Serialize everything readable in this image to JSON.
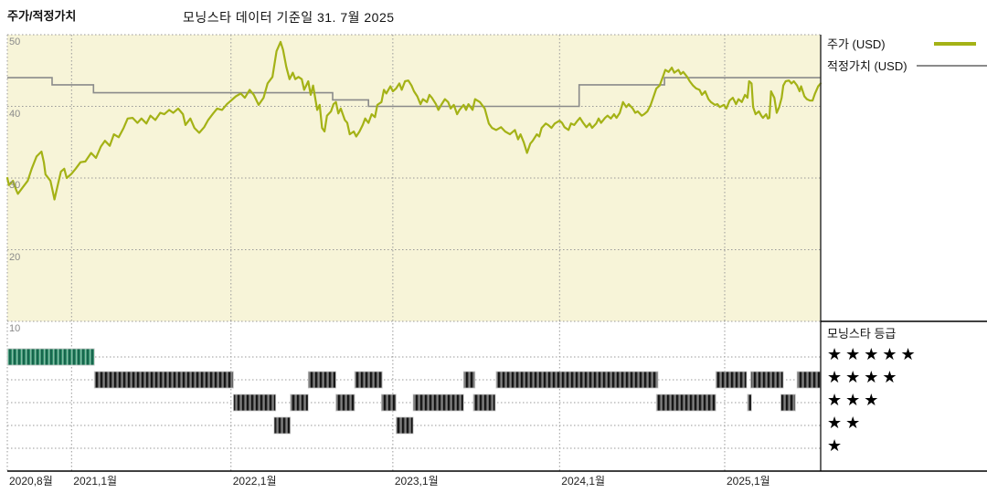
{
  "header": {
    "left_label": "주가/적정가치",
    "title": "모닝스타 데이터 기준일 31. 7월 2025"
  },
  "legend": {
    "price_label": "주가 (USD)",
    "fair_label": "적정가치 (USD)"
  },
  "rating_legend": {
    "title": "모닝스타 등급",
    "star_char": "★",
    "rows": [
      5,
      4,
      3,
      2,
      1
    ]
  },
  "colors": {
    "price_line": "#a4b216",
    "fair_line": "#8a8a8a",
    "plot_bg": "#f7f4d8",
    "grid": "#999999",
    "axis_line": "#000000",
    "tick_text": "#8a8a8a",
    "band_dark_base": "#585858",
    "band_dark_stripe": "#111111",
    "band_dark_light": "#9a9a9a",
    "band_teal_base": "#2f8e69",
    "band_teal_stripe": "#14624a",
    "band_teal_light": "#bcd9cd",
    "band_outline": "#c8c8c8"
  },
  "chart_data": {
    "type": "line",
    "title": "모닝스타 데이터 기준일 31. 7월 2025",
    "x_axis": {
      "ticks": [
        {
          "label": "2020,8월",
          "f": 0.0
        },
        {
          "label": "2021,1월",
          "f": 0.079
        },
        {
          "label": "2022,1월",
          "f": 0.275
        },
        {
          "label": "2023,1월",
          "f": 0.474
        },
        {
          "label": "2024,1월",
          "f": 0.679
        },
        {
          "label": "2025,1월",
          "f": 0.882
        }
      ]
    },
    "y_axis": {
      "ticks": [
        50,
        40,
        30,
        20,
        10
      ],
      "range": [
        10,
        50.5
      ],
      "unit": "USD"
    },
    "series": [
      {
        "name": "주가 (USD)",
        "type": "line",
        "points": [
          [
            0.0,
            30.0
          ],
          [
            0.002,
            29.0
          ],
          [
            0.007,
            29.6
          ],
          [
            0.011,
            28.3
          ],
          [
            0.013,
            27.8
          ],
          [
            0.019,
            28.7
          ],
          [
            0.025,
            29.6
          ],
          [
            0.03,
            31.3
          ],
          [
            0.036,
            33.0
          ],
          [
            0.042,
            33.7
          ],
          [
            0.045,
            32.2
          ],
          [
            0.047,
            30.5
          ],
          [
            0.053,
            29.6
          ],
          [
            0.056,
            28.1
          ],
          [
            0.058,
            27.0
          ],
          [
            0.062,
            29.0
          ],
          [
            0.066,
            30.9
          ],
          [
            0.07,
            31.3
          ],
          [
            0.073,
            30.0
          ],
          [
            0.079,
            30.6
          ],
          [
            0.084,
            31.3
          ],
          [
            0.09,
            32.2
          ],
          [
            0.096,
            32.3
          ],
          [
            0.103,
            33.5
          ],
          [
            0.109,
            32.8
          ],
          [
            0.115,
            34.4
          ],
          [
            0.12,
            35.2
          ],
          [
            0.126,
            34.5
          ],
          [
            0.131,
            36.1
          ],
          [
            0.137,
            35.7
          ],
          [
            0.143,
            37.0
          ],
          [
            0.148,
            38.3
          ],
          [
            0.154,
            38.4
          ],
          [
            0.16,
            37.7
          ],
          [
            0.165,
            38.3
          ],
          [
            0.171,
            37.6
          ],
          [
            0.176,
            38.7
          ],
          [
            0.182,
            38.1
          ],
          [
            0.188,
            39.1
          ],
          [
            0.193,
            38.9
          ],
          [
            0.199,
            39.5
          ],
          [
            0.204,
            39.1
          ],
          [
            0.21,
            39.7
          ],
          [
            0.216,
            38.9
          ],
          [
            0.219,
            37.4
          ],
          [
            0.225,
            38.3
          ],
          [
            0.23,
            37.0
          ],
          [
            0.236,
            36.3
          ],
          [
            0.242,
            37.1
          ],
          [
            0.247,
            38.1
          ],
          [
            0.253,
            39.0
          ],
          [
            0.258,
            39.7
          ],
          [
            0.264,
            39.5
          ],
          [
            0.27,
            40.3
          ],
          [
            0.275,
            40.8
          ],
          [
            0.281,
            41.4
          ],
          [
            0.287,
            41.8
          ],
          [
            0.292,
            41.2
          ],
          [
            0.298,
            42.3
          ],
          [
            0.303,
            41.6
          ],
          [
            0.309,
            40.2
          ],
          [
            0.315,
            41.2
          ],
          [
            0.32,
            43.2
          ],
          [
            0.326,
            44.1
          ],
          [
            0.331,
            47.7
          ],
          [
            0.336,
            49.0
          ],
          [
            0.339,
            47.9
          ],
          [
            0.343,
            45.5
          ],
          [
            0.347,
            43.8
          ],
          [
            0.351,
            44.7
          ],
          [
            0.354,
            43.8
          ],
          [
            0.358,
            44.1
          ],
          [
            0.362,
            43.8
          ],
          [
            0.365,
            42.3
          ],
          [
            0.37,
            43.5
          ],
          [
            0.373,
            41.6
          ],
          [
            0.376,
            42.9
          ],
          [
            0.381,
            39.5
          ],
          [
            0.384,
            40.2
          ],
          [
            0.387,
            37.0
          ],
          [
            0.39,
            36.5
          ],
          [
            0.393,
            38.7
          ],
          [
            0.398,
            39.3
          ],
          [
            0.401,
            40.3
          ],
          [
            0.404,
            40.6
          ],
          [
            0.407,
            39.0
          ],
          [
            0.41,
            39.7
          ],
          [
            0.415,
            38.1
          ],
          [
            0.418,
            37.7
          ],
          [
            0.421,
            36.1
          ],
          [
            0.426,
            36.5
          ],
          [
            0.429,
            35.8
          ],
          [
            0.433,
            36.5
          ],
          [
            0.437,
            37.4
          ],
          [
            0.44,
            38.3
          ],
          [
            0.444,
            37.7
          ],
          [
            0.448,
            38.9
          ],
          [
            0.452,
            38.5
          ],
          [
            0.455,
            40.2
          ],
          [
            0.46,
            40.6
          ],
          [
            0.463,
            42.3
          ],
          [
            0.466,
            41.8
          ],
          [
            0.471,
            42.8
          ],
          [
            0.474,
            42.1
          ],
          [
            0.478,
            42.5
          ],
          [
            0.482,
            43.2
          ],
          [
            0.485,
            42.3
          ],
          [
            0.489,
            43.5
          ],
          [
            0.493,
            43.6
          ],
          [
            0.497,
            42.9
          ],
          [
            0.5,
            42.1
          ],
          [
            0.504,
            41.4
          ],
          [
            0.508,
            40.3
          ],
          [
            0.511,
            41.0
          ],
          [
            0.516,
            40.6
          ],
          [
            0.519,
            41.6
          ],
          [
            0.522,
            41.2
          ],
          [
            0.527,
            40.3
          ],
          [
            0.53,
            39.5
          ],
          [
            0.534,
            40.3
          ],
          [
            0.538,
            41.0
          ],
          [
            0.542,
            40.6
          ],
          [
            0.545,
            39.7
          ],
          [
            0.549,
            40.2
          ],
          [
            0.553,
            38.9
          ],
          [
            0.556,
            39.5
          ],
          [
            0.561,
            40.2
          ],
          [
            0.564,
            39.5
          ],
          [
            0.567,
            40.3
          ],
          [
            0.572,
            39.5
          ],
          [
            0.575,
            41.0
          ],
          [
            0.581,
            40.6
          ],
          [
            0.587,
            39.7
          ],
          [
            0.592,
            37.6
          ],
          [
            0.596,
            37.0
          ],
          [
            0.601,
            36.7
          ],
          [
            0.607,
            37.1
          ],
          [
            0.612,
            36.5
          ],
          [
            0.618,
            36.1
          ],
          [
            0.624,
            36.7
          ],
          [
            0.628,
            35.4
          ],
          [
            0.631,
            36.1
          ],
          [
            0.635,
            35.0
          ],
          [
            0.639,
            33.5
          ],
          [
            0.643,
            34.8
          ],
          [
            0.646,
            35.2
          ],
          [
            0.651,
            36.1
          ],
          [
            0.654,
            35.8
          ],
          [
            0.657,
            37.0
          ],
          [
            0.662,
            37.6
          ],
          [
            0.665,
            37.4
          ],
          [
            0.669,
            37.0
          ],
          [
            0.673,
            37.6
          ],
          [
            0.679,
            38.0
          ],
          [
            0.682,
            37.7
          ],
          [
            0.685,
            37.1
          ],
          [
            0.69,
            36.7
          ],
          [
            0.693,
            37.6
          ],
          [
            0.697,
            37.4
          ],
          [
            0.701,
            38.0
          ],
          [
            0.704,
            38.4
          ],
          [
            0.708,
            37.7
          ],
          [
            0.712,
            37.1
          ],
          [
            0.716,
            37.6
          ],
          [
            0.719,
            37.0
          ],
          [
            0.724,
            37.6
          ],
          [
            0.727,
            38.3
          ],
          [
            0.73,
            37.7
          ],
          [
            0.735,
            38.4
          ],
          [
            0.738,
            38.7
          ],
          [
            0.742,
            38.3
          ],
          [
            0.746,
            38.9
          ],
          [
            0.749,
            38.4
          ],
          [
            0.753,
            39.1
          ],
          [
            0.757,
            40.6
          ],
          [
            0.761,
            39.9
          ],
          [
            0.764,
            40.3
          ],
          [
            0.769,
            39.7
          ],
          [
            0.772,
            39.1
          ],
          [
            0.775,
            39.3
          ],
          [
            0.78,
            38.7
          ],
          [
            0.783,
            38.9
          ],
          [
            0.787,
            39.3
          ],
          [
            0.791,
            40.2
          ],
          [
            0.794,
            41.2
          ],
          [
            0.798,
            42.5
          ],
          [
            0.802,
            42.9
          ],
          [
            0.806,
            44.1
          ],
          [
            0.809,
            45.1
          ],
          [
            0.813,
            44.8
          ],
          [
            0.817,
            45.4
          ],
          [
            0.82,
            44.7
          ],
          [
            0.825,
            45.1
          ],
          [
            0.828,
            44.5
          ],
          [
            0.831,
            44.8
          ],
          [
            0.836,
            44.1
          ],
          [
            0.839,
            43.5
          ],
          [
            0.843,
            42.9
          ],
          [
            0.847,
            42.5
          ],
          [
            0.851,
            42.3
          ],
          [
            0.854,
            41.6
          ],
          [
            0.858,
            42.1
          ],
          [
            0.862,
            41.0
          ],
          [
            0.865,
            40.6
          ],
          [
            0.87,
            40.2
          ],
          [
            0.873,
            40.3
          ],
          [
            0.876,
            39.9
          ],
          [
            0.881,
            40.2
          ],
          [
            0.884,
            39.7
          ],
          [
            0.888,
            40.8
          ],
          [
            0.892,
            41.2
          ],
          [
            0.896,
            40.3
          ],
          [
            0.899,
            41.0
          ],
          [
            0.903,
            40.6
          ],
          [
            0.907,
            41.6
          ],
          [
            0.91,
            41.2
          ],
          [
            0.912,
            43.5
          ],
          [
            0.915,
            43.2
          ],
          [
            0.917,
            39.9
          ],
          [
            0.92,
            38.9
          ],
          [
            0.924,
            39.3
          ],
          [
            0.927,
            38.7
          ],
          [
            0.929,
            38.4
          ],
          [
            0.933,
            38.9
          ],
          [
            0.935,
            38.3
          ],
          [
            0.937,
            38.4
          ],
          [
            0.939,
            42.1
          ],
          [
            0.943,
            41.2
          ],
          [
            0.946,
            39.1
          ],
          [
            0.949,
            39.9
          ],
          [
            0.952,
            41.2
          ],
          [
            0.954,
            42.9
          ],
          [
            0.957,
            43.5
          ],
          [
            0.961,
            43.6
          ],
          [
            0.964,
            43.2
          ],
          [
            0.967,
            43.5
          ],
          [
            0.971,
            42.9
          ],
          [
            0.974,
            42.1
          ],
          [
            0.976,
            42.8
          ],
          [
            0.98,
            41.4
          ],
          [
            0.983,
            41.0
          ],
          [
            0.987,
            40.8
          ],
          [
            0.99,
            40.8
          ],
          [
            0.993,
            41.8
          ],
          [
            0.997,
            42.8
          ],
          [
            1.0,
            43.2
          ]
        ]
      },
      {
        "name": "적정가치 (USD)",
        "type": "step",
        "segments": [
          [
            0.0,
            0.055,
            44.0
          ],
          [
            0.055,
            0.106,
            43.0
          ],
          [
            0.106,
            0.4,
            41.9
          ],
          [
            0.4,
            0.444,
            40.9
          ],
          [
            0.444,
            0.703,
            40.0
          ],
          [
            0.703,
            0.808,
            43.0
          ],
          [
            0.808,
            1.0,
            44.0
          ]
        ]
      }
    ],
    "ratings": {
      "rows": [
        {
          "stars": 5,
          "segments": [
            [
              0.0,
              0.107
            ]
          ]
        },
        {
          "stars": 4,
          "segments": [
            [
              0.107,
              0.278
            ],
            [
              0.37,
              0.404
            ],
            [
              0.427,
              0.461
            ],
            [
              0.561,
              0.575
            ],
            [
              0.601,
              0.8
            ],
            [
              0.871,
              0.909
            ],
            [
              0.914,
              0.954
            ],
            [
              0.971,
              1.0
            ]
          ]
        },
        {
          "stars": 3,
          "segments": [
            [
              0.278,
              0.33
            ],
            [
              0.348,
              0.37
            ],
            [
              0.404,
              0.427
            ],
            [
              0.46,
              0.478
            ],
            [
              0.499,
              0.561
            ],
            [
              0.573,
              0.6
            ],
            [
              0.798,
              0.871
            ],
            [
              0.91,
              0.915
            ],
            [
              0.951,
              0.969
            ]
          ]
        },
        {
          "stars": 2,
          "segments": [
            [
              0.328,
              0.348
            ],
            [
              0.478,
              0.499
            ]
          ]
        },
        {
          "stars": 1,
          "segments": []
        }
      ]
    }
  }
}
